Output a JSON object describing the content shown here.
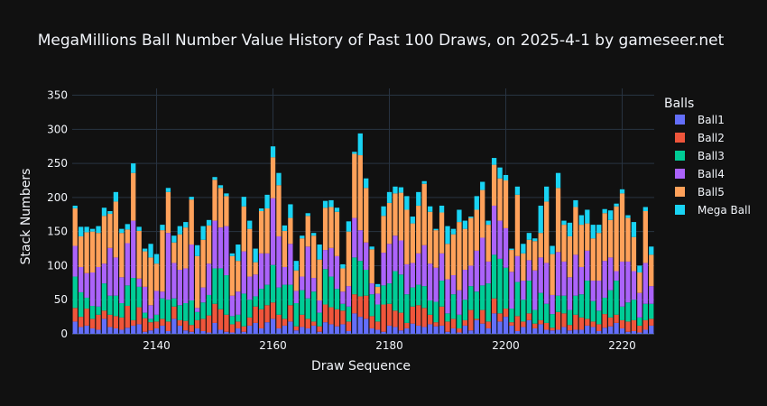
{
  "chart_data": {
    "type": "bar",
    "stacked": true,
    "title": "MegaMillions Ball Number Value History of Past 100 Draws, on 2025-4-1 by gameseer.net",
    "xlabel": "Draw Sequence",
    "ylabel": "Stack Numbers",
    "xlim": [
      2125.5,
      2225.5
    ],
    "ylim": [
      0,
      360
    ],
    "x_ticks": [
      2140,
      2160,
      2180,
      2200,
      2220
    ],
    "y_ticks": [
      0,
      50,
      100,
      150,
      200,
      250,
      300,
      350
    ],
    "grid": true,
    "legend_title": "Balls",
    "legend_position": "right",
    "x": [
      2126,
      2127,
      2128,
      2129,
      2130,
      2131,
      2132,
      2133,
      2134,
      2135,
      2136,
      2137,
      2138,
      2139,
      2140,
      2141,
      2142,
      2143,
      2144,
      2145,
      2146,
      2147,
      2148,
      2149,
      2150,
      2151,
      2152,
      2153,
      2154,
      2155,
      2156,
      2157,
      2158,
      2159,
      2160,
      2161,
      2162,
      2163,
      2164,
      2165,
      2166,
      2167,
      2168,
      2169,
      2170,
      2171,
      2172,
      2173,
      2174,
      2175,
      2176,
      2177,
      2178,
      2179,
      2180,
      2181,
      2182,
      2183,
      2184,
      2185,
      2186,
      2187,
      2188,
      2189,
      2190,
      2191,
      2192,
      2193,
      2194,
      2195,
      2196,
      2197,
      2198,
      2199,
      2200,
      2201,
      2202,
      2203,
      2204,
      2205,
      2206,
      2207,
      2208,
      2209,
      2210,
      2211,
      2212,
      2213,
      2214,
      2215,
      2216,
      2217,
      2218,
      2219,
      2220,
      2221,
      2222,
      2223,
      2224,
      2225
    ],
    "series": [
      {
        "name": "Ball1",
        "color": "#636efa",
        "values": [
          18,
          10,
          12,
          8,
          6,
          22,
          10,
          8,
          6,
          9,
          12,
          14,
          3,
          5,
          8,
          12,
          4,
          22,
          12,
          5,
          3,
          8,
          4,
          2,
          16,
          6,
          3,
          2,
          8,
          3,
          12,
          16,
          8,
          17,
          22,
          8,
          12,
          18,
          5,
          10,
          8,
          12,
          3,
          17,
          14,
          11,
          14,
          4,
          30,
          25,
          22,
          8,
          6,
          3,
          12,
          10,
          5,
          8,
          15,
          12,
          10,
          14,
          11,
          12,
          3,
          8,
          2,
          12,
          5,
          20,
          15,
          8,
          30,
          18,
          25,
          12,
          4,
          10,
          20,
          8,
          14,
          6,
          5,
          6,
          10,
          5,
          6,
          6,
          12,
          10,
          4,
          9,
          11,
          16,
          8,
          3,
          4,
          2,
          6,
          12
        ]
      },
      {
        "name": "Ball2",
        "color": "#EF553B",
        "values": [
          20,
          15,
          25,
          14,
          22,
          12,
          18,
          18,
          18,
          32,
          8,
          25,
          20,
          12,
          10,
          10,
          14,
          18,
          8,
          14,
          10,
          12,
          18,
          25,
          28,
          30,
          25,
          12,
          10,
          8,
          12,
          24,
          28,
          25,
          24,
          20,
          10,
          24,
          6,
          18,
          14,
          6,
          8,
          26,
          25,
          25,
          20,
          14,
          28,
          30,
          34,
          18,
          12,
          40,
          32,
          24,
          26,
          8,
          25,
          30,
          28,
          14,
          6,
          28,
          15,
          14,
          6,
          8,
          30,
          2,
          20,
          10,
          22,
          12,
          12,
          5,
          22,
          8,
          10,
          7,
          6,
          10,
          4,
          26,
          20,
          8,
          22,
          18,
          10,
          8,
          10,
          20,
          13,
          12,
          12,
          15,
          16,
          10,
          14,
          10
        ]
      },
      {
        "name": "Ball3",
        "color": "#00cc96",
        "values": [
          46,
          36,
          16,
          19,
          12,
          40,
          28,
          30,
          21,
          30,
          62,
          30,
          8,
          5,
          10,
          30,
          32,
          12,
          22,
          26,
          36,
          12,
          24,
          30,
          52,
          60,
          58,
          12,
          10,
          48,
          26,
          15,
          30,
          30,
          55,
          40,
          50,
          30,
          34,
          36,
          30,
          44,
          20,
          52,
          45,
          30,
          10,
          22,
          54,
          52,
          38,
          32,
          25,
          28,
          30,
          58,
          56,
          42,
          28,
          30,
          32,
          21,
          30,
          38,
          12,
          36,
          20,
          30,
          35,
          40,
          36,
          56,
          64,
          80,
          60,
          20,
          50,
          32,
          48,
          20,
          40,
          28,
          20,
          24,
          26,
          22,
          28,
          34,
          56,
          30,
          20,
          24,
          40,
          50,
          20,
          28,
          30,
          12,
          24,
          22
        ]
      },
      {
        "name": "Ball4",
        "color": "#ab63fa",
        "values": [
          45,
          37,
          36,
          49,
          58,
          29,
          70,
          56,
          38,
          62,
          84,
          12,
          38,
          20,
          35,
          10,
          98,
          52,
          52,
          51,
          82,
          6,
          22,
          46,
          70,
          60,
          72,
          30,
          34,
          62,
          34,
          32,
          52,
          46,
          98,
          75,
          26,
          60,
          18,
          20,
          76,
          20,
          18,
          28,
          42,
          48,
          18,
          30,
          58,
          45,
          40,
          16,
          16,
          48,
          58,
          52,
          50,
          44,
          36,
          46,
          60,
          54,
          50,
          40,
          50,
          28,
          36,
          44,
          30,
          60,
          70,
          32,
          72,
          56,
          58,
          54,
          38,
          28,
          30,
          58,
          52,
          60,
          28,
          64,
          50,
          48,
          60,
          40,
          44,
          30,
          44,
          54,
          48,
          14,
          66,
          60,
          42,
          36,
          60,
          26
        ]
      },
      {
        "name": "Ball5",
        "color": "#FFA15A",
        "values": [
          55,
          45,
          60,
          60,
          50,
          70,
          50,
          82,
          65,
          20,
          70,
          70,
          52,
          70,
          40,
          90,
          60,
          30,
          52,
          60,
          66,
          76,
          70,
          56,
          60,
          58,
          44,
          58,
          45,
          66,
          70,
          18,
          62,
          66,
          60,
          75,
          53,
          38,
          30,
          56,
          45,
          62,
          60,
          62,
          60,
          65,
          34,
          80,
          94,
          110,
          80,
          50,
          10,
          54,
          60,
          62,
          70,
          80,
          58,
          70,
          90,
          76,
          55,
          60,
          52,
          60,
          100,
          60,
          70,
          60,
          70,
          54,
          60,
          62,
          70,
          32,
          90,
          40,
          30,
          43,
          36,
          90,
          60,
          94,
          54,
          60,
          70,
          62,
          40,
          62,
          70,
          70,
          55,
          95,
          100,
          64,
          50,
          30,
          76,
          46
        ]
      },
      {
        "name": "Mega Ball",
        "color": "#19d3f3",
        "values": [
          4,
          14,
          8,
          4,
          10,
          12,
          4,
          14,
          6,
          8,
          14,
          6,
          4,
          20,
          14,
          8,
          6,
          10,
          12,
          8,
          4,
          16,
          20,
          8,
          4,
          4,
          4,
          4,
          24,
          14,
          12,
          20,
          4,
          20,
          16,
          18,
          8,
          20,
          14,
          4,
          4,
          4,
          22,
          10,
          10,
          6,
          6,
          15,
          3,
          32,
          14,
          4,
          4,
          14,
          16,
          10,
          8,
          20,
          10,
          20,
          4,
          8,
          2,
          10,
          26,
          8,
          18,
          12,
          2,
          20,
          12,
          6,
          10,
          16,
          8,
          2,
          12,
          14,
          10,
          4,
          40,
          22,
          12,
          22,
          6,
          20,
          10,
          14,
          20,
          20,
          12,
          6,
          14,
          4,
          6,
          4,
          22,
          10,
          6,
          12
        ]
      }
    ]
  }
}
